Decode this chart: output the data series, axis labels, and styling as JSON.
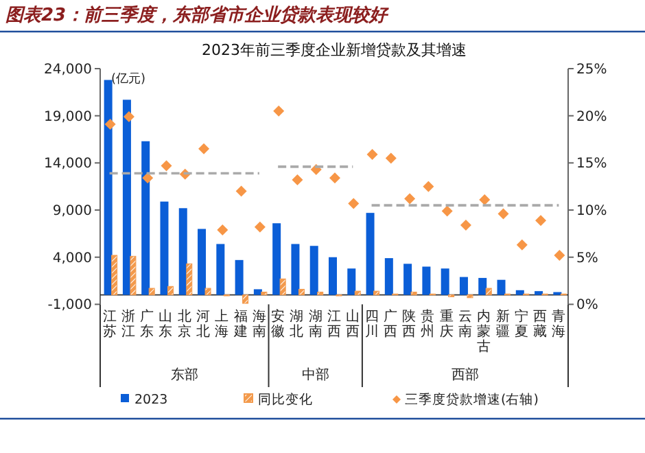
{
  "chart_data": {
    "type": "bar",
    "title": "图表23：前三季度，东部省市企业贷款表现较好",
    "subtitle": "2023年前三季度企业新增贷款及其增速",
    "ylabel": "(亿元)",
    "categories": [
      "江苏",
      "浙江",
      "广东",
      "山东",
      "北京",
      "河北",
      "上海",
      "福建",
      "海南",
      "安徽",
      "湖北",
      "湖南",
      "江西",
      "山西",
      "四川",
      "广西",
      "陕西",
      "贵州",
      "重庆",
      "云南",
      "内蒙古",
      "新疆",
      "宁夏",
      "西藏",
      "青海"
    ],
    "series": [
      {
        "name": "2023",
        "color": "#0b5ed7",
        "values": [
          22800,
          20700,
          16300,
          9900,
          9200,
          7000,
          5400,
          3700,
          600,
          7600,
          5400,
          5200,
          4000,
          2800,
          8700,
          3900,
          3300,
          3000,
          2800,
          1900,
          1800,
          1600,
          500,
          400,
          300
        ]
      },
      {
        "name": "同比变化",
        "color": "#f39a4c",
        "values": [
          4200,
          4100,
          700,
          900,
          3300,
          700,
          -100,
          -900,
          300,
          1700,
          600,
          300,
          -100,
          400,
          400,
          100,
          300,
          100,
          -200,
          -300,
          700,
          100,
          100,
          100,
          100
        ]
      },
      {
        "name": "三季度贷款增速(右轴)",
        "type": "scatter",
        "axis": "y2",
        "marker": "diamond",
        "color": "#f79646",
        "values": [
          19.1,
          19.9,
          13.4,
          14.7,
          13.8,
          16.5,
          7.9,
          12.0,
          8.2,
          20.5,
          13.2,
          14.3,
          13.4,
          10.7,
          15.9,
          15.5,
          11.2,
          12.5,
          9.9,
          8.4,
          11.1,
          9.6,
          6.3,
          8.9,
          5.2
        ]
      },
      {
        "type": "line",
        "axis": "y2",
        "line_style": "dashed",
        "color": "#aaaaaa",
        "x": [
          "江苏",
          "海南"
        ],
        "values": [
          13.9,
          13.9
        ]
      },
      {
        "type": "line",
        "axis": "y2",
        "line_style": "dashed",
        "color": "#aaaaaa",
        "x": [
          "安徽",
          "山西"
        ],
        "values": [
          14.6,
          14.6
        ]
      },
      {
        "type": "line",
        "axis": "y2",
        "line_style": "dashed",
        "color": "#aaaaaa",
        "x": [
          "四川",
          "青海"
        ],
        "values": [
          10.5,
          10.5
        ]
      }
    ],
    "ylim": [
      -1000,
      24000
    ],
    "yticks": [
      {
        "value": -1000,
        "label": "-1,000"
      },
      {
        "value": 4000,
        "label": "4,000"
      },
      {
        "value": 9000,
        "label": "9,000"
      },
      {
        "value": 14000,
        "label": "14,000"
      },
      {
        "value": 19000,
        "label": "19,000"
      },
      {
        "value": 24000,
        "label": "24,000"
      }
    ],
    "y2lim": [
      0,
      25
    ],
    "y2ticks": [
      {
        "value": 0,
        "label": "0%"
      },
      {
        "value": 5,
        "label": "5%"
      },
      {
        "value": 10,
        "label": "10%"
      },
      {
        "value": 15,
        "label": "15%"
      },
      {
        "value": 20,
        "label": "20%"
      },
      {
        "value": 25,
        "label": "25%"
      }
    ],
    "annotations": [
      "东部",
      "中部",
      "西部"
    ],
    "legend": "bottom",
    "grid": false
  }
}
